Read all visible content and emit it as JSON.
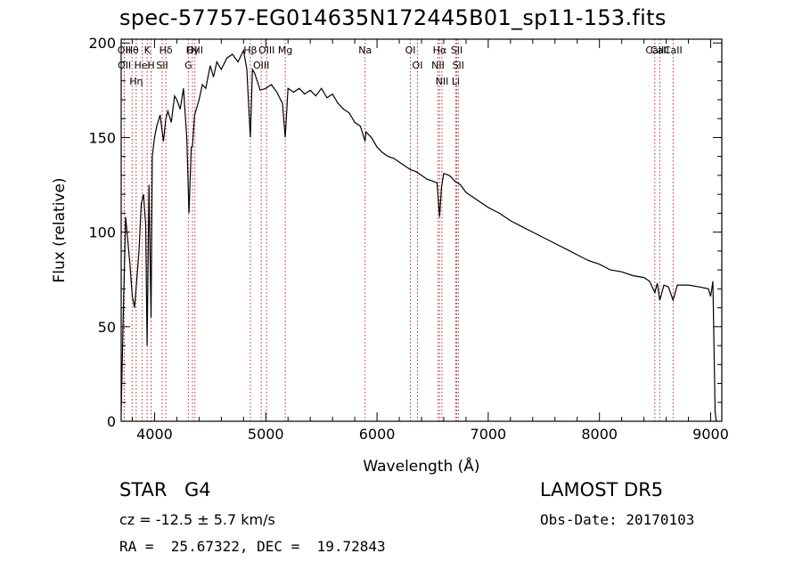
{
  "header": {
    "title": "spec-57757-EG014635N172445B01_sp11-153.fits"
  },
  "info": {
    "object_class": "STAR",
    "subclass": "G4",
    "survey": "LAMOST DR5",
    "cz": "cz = -12.5 ± 5.7 km/s",
    "obs_date": "Obs-Date: 20170103",
    "radec": "RA =  25.67322, DEC =  19.72843"
  },
  "chart_data": {
    "type": "line",
    "title": "spec-57757-EG014635N172445B01_sp11-153.fits",
    "xlabel": "Wavelength (Å)",
    "ylabel": "Flux (relative)",
    "xlim": [
      3700,
      9100
    ],
    "ylim": [
      0,
      202
    ],
    "xticks": [
      4000,
      5000,
      6000,
      7000,
      8000,
      9000
    ],
    "yticks": [
      0,
      50,
      100,
      150,
      200
    ],
    "grid": false,
    "series": [
      {
        "values_description": "stellar spectrum flux",
        "x": [
          3700,
          3720,
          3740,
          3760,
          3780,
          3800,
          3820,
          3840,
          3860,
          3880,
          3900,
          3920,
          3933,
          3950,
          3968,
          3980,
          4000,
          4020,
          4050,
          4080,
          4101,
          4120,
          4150,
          4180,
          4200,
          4230,
          4260,
          4290,
          4310,
          4330,
          4340,
          4360,
          4400,
          4430,
          4460,
          4500,
          4530,
          4560,
          4600,
          4650,
          4700,
          4750,
          4800,
          4830,
          4861,
          4880,
          4900,
          4950,
          5000,
          5050,
          5100,
          5150,
          5175,
          5200,
          5250,
          5300,
          5350,
          5400,
          5450,
          5500,
          5550,
          5600,
          5650,
          5700,
          5750,
          5800,
          5850,
          5893,
          5900,
          5950,
          6000,
          6050,
          6100,
          6150,
          6200,
          6250,
          6300,
          6350,
          6400,
          6450,
          6500,
          6540,
          6563,
          6580,
          6600,
          6650,
          6700,
          6750,
          6800,
          6900,
          7000,
          7100,
          7200,
          7300,
          7400,
          7500,
          7600,
          7700,
          7800,
          7900,
          8000,
          8100,
          8200,
          8300,
          8400,
          8450,
          8498,
          8520,
          8542,
          8580,
          8620,
          8662,
          8700,
          8800,
          8900,
          8980,
          9000,
          9020,
          9040,
          9050
        ],
        "y": [
          5,
          60,
          108,
          95,
          82,
          66,
          60,
          75,
          90,
          115,
          120,
          104,
          40,
          125,
          55,
          140,
          150,
          156,
          162,
          148,
          160,
          164,
          158,
          172,
          170,
          165,
          176,
          150,
          110,
          145,
          145,
          162,
          170,
          178,
          176,
          188,
          182,
          190,
          186,
          192,
          194,
          190,
          196,
          186,
          150,
          186,
          184,
          175,
          176,
          178,
          174,
          168,
          150,
          176,
          174,
          176,
          173,
          175,
          172,
          176,
          171,
          173,
          168,
          165,
          163,
          158,
          156,
          148,
          153,
          150,
          145,
          142,
          140,
          139,
          137,
          135,
          133,
          132,
          130,
          128,
          127,
          126,
          108,
          124,
          131,
          130,
          127,
          125,
          121,
          117,
          113,
          110,
          106,
          103,
          100,
          97,
          94,
          91,
          88,
          85,
          83,
          80,
          79,
          77,
          76,
          74,
          68,
          73,
          64,
          72,
          71,
          64,
          72,
          72,
          71,
          70,
          66,
          74,
          5,
          0
        ]
      }
    ],
    "line_markers": [
      {
        "label": "Hθ",
        "x": 3798
      },
      {
        "label": "OII",
        "x": 3727
      },
      {
        "label": "OII",
        "x": 3729
      },
      {
        "label": "K",
        "x": 3934
      },
      {
        "label": "HeI",
        "x": 3889
      },
      {
        "label": "Hη",
        "x": 3835
      },
      {
        "label": "Hδ",
        "x": 4102
      },
      {
        "label": "SII",
        "x": 4069
      },
      {
        "label": "H",
        "x": 3969
      },
      {
        "label": "OIII",
        "x": 4363
      },
      {
        "label": "Hγ",
        "x": 4341
      },
      {
        "label": "G",
        "x": 4304
      },
      {
        "label": "OIII",
        "x": 5007
      },
      {
        "label": "OIII",
        "x": 4959
      },
      {
        "label": "Hβ",
        "x": 4861
      },
      {
        "label": "Mg",
        "x": 5175
      },
      {
        "label": "Na",
        "x": 5893
      },
      {
        "label": "OI",
        "x": 6300
      },
      {
        "label": "OI",
        "x": 6364
      },
      {
        "label": "Hα",
        "x": 6563
      },
      {
        "label": "NII",
        "x": 6548
      },
      {
        "label": "NII",
        "x": 6584
      },
      {
        "label": "SII",
        "x": 6717
      },
      {
        "label": "SII",
        "x": 6731
      },
      {
        "label": "Li",
        "x": 6708
      },
      {
        "label": "CaII",
        "x": 8498
      },
      {
        "label": "CaII",
        "x": 8542
      },
      {
        "label": "CaII",
        "x": 8662
      }
    ]
  }
}
